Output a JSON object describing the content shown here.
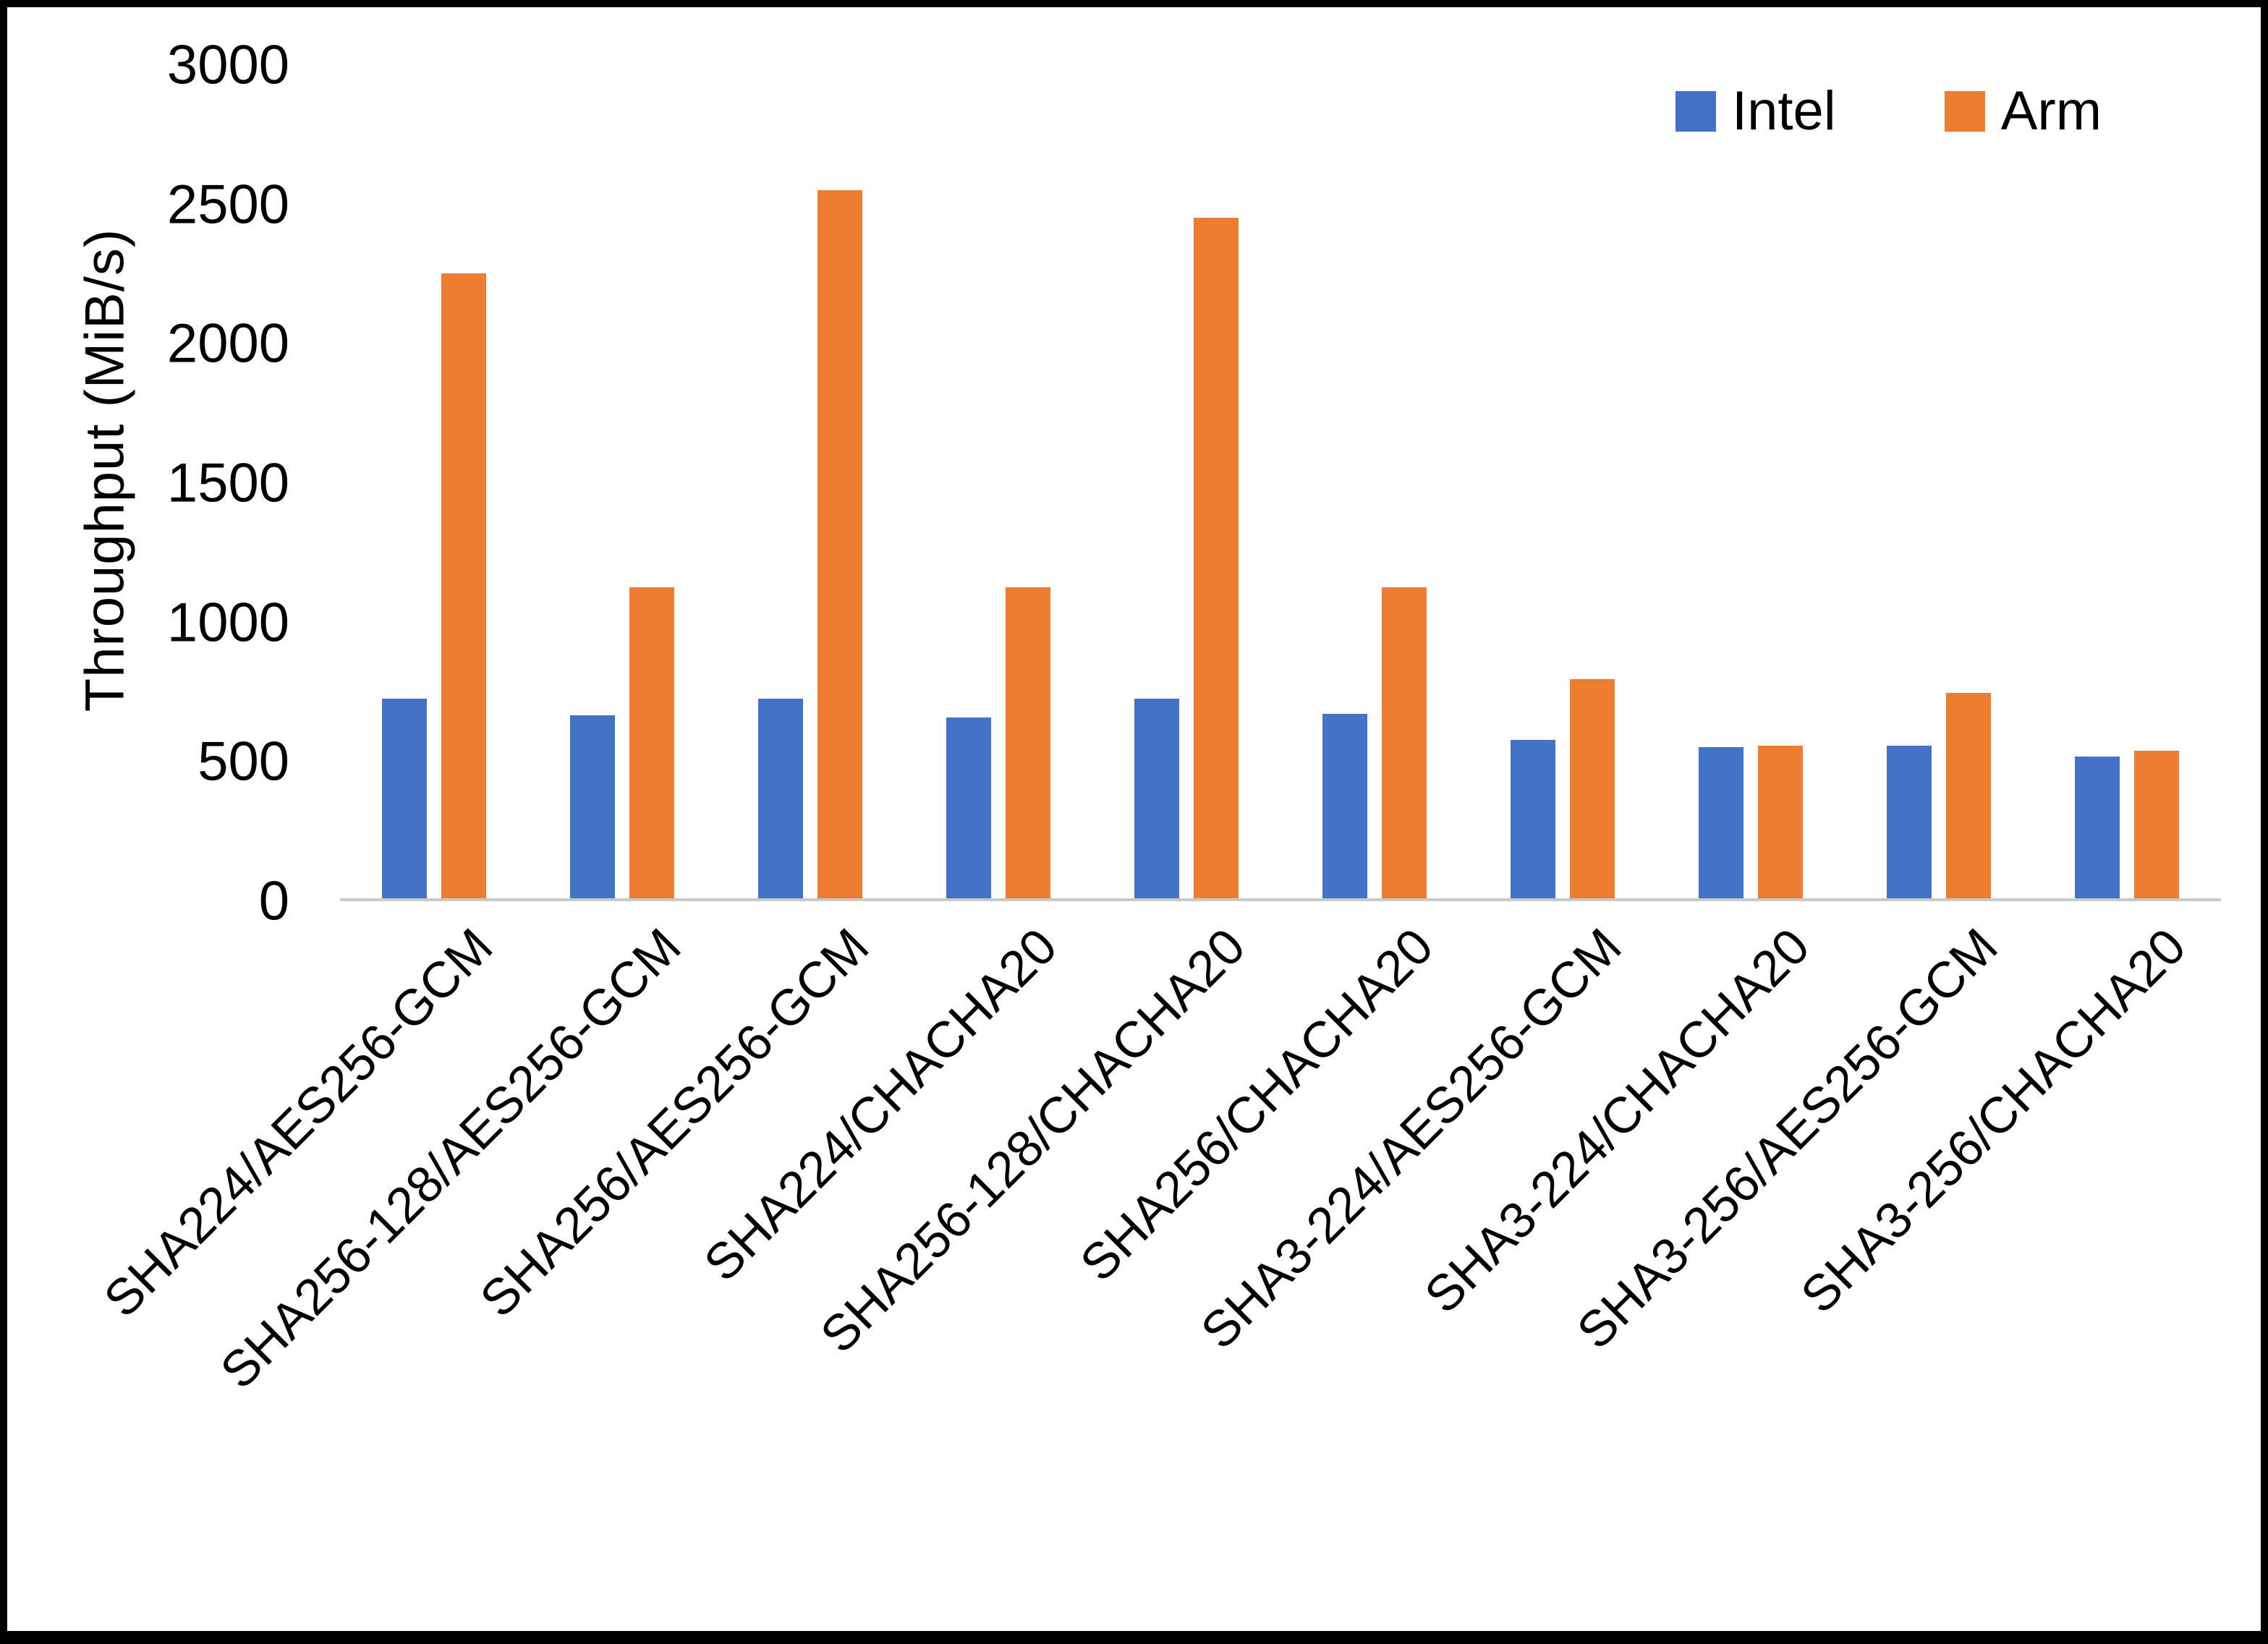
{
  "chart_data": {
    "type": "bar",
    "title": "",
    "xlabel": "",
    "ylabel": "Throughput (MiB/s)",
    "ylim": [
      0,
      3000
    ],
    "ytick_step": 500,
    "grid": false,
    "legend_position": "top-right",
    "categories": [
      "SHA224/AES256-GCM",
      "SHA256-128/AES256-GCM",
      "SHA256/AES256-GCM",
      "SHA224/CHACHA20",
      "SHA256-128/CHACHA20",
      "SHA256/CHACHA20",
      "SHA3-224/AES256-GCM",
      "SHA3-224/CHACHA20",
      "SHA3-256/AES256-GCM",
      "SHA3-256/CHACHA20"
    ],
    "series": [
      {
        "name": "Intel",
        "color": "#4472C4",
        "values": [
          720,
          660,
          720,
          650,
          720,
          665,
          570,
          545,
          550,
          510
        ]
      },
      {
        "name": "Arm",
        "color": "#ED7D31",
        "values": [
          2250,
          1120,
          2550,
          1120,
          2450,
          1120,
          790,
          550,
          740,
          530
        ]
      }
    ]
  }
}
